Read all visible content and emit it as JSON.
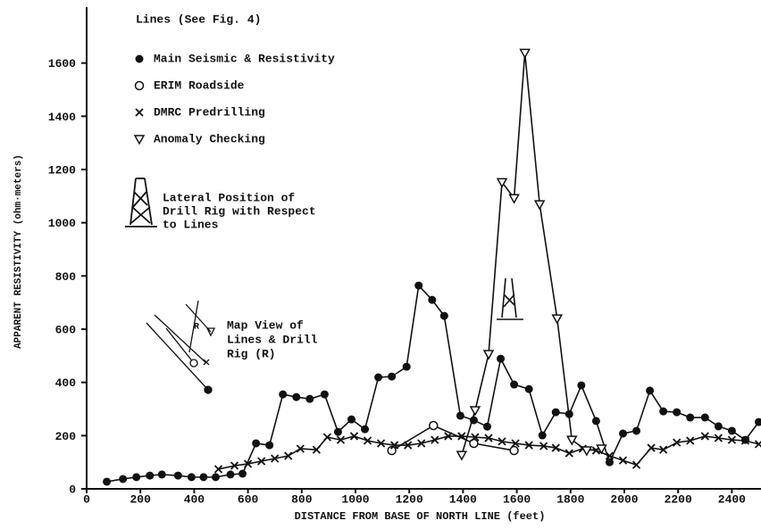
{
  "chart_data": {
    "type": "line",
    "x_label": "DISTANCE FROM BASE OF NORTH LINE (feet)",
    "y_label": "APPARENT RESISTIVITY (ohm·meters)",
    "legend_title": "Lines (See Fig. 4)",
    "rig_note": [
      "Lateral Position of",
      "Drill Rig with Respect",
      "to Lines"
    ],
    "map_note": [
      "Map View of",
      "Lines & Drill",
      "Rig (R)"
    ],
    "map_rig_label": "R",
    "xlim": [
      0,
      2500
    ],
    "ylim": [
      0,
      1800
    ],
    "xticks": [
      0,
      200,
      400,
      600,
      800,
      1000,
      1200,
      1400,
      1600,
      1800,
      2000,
      2200,
      2400
    ],
    "yticks": [
      0,
      200,
      400,
      600,
      800,
      1000,
      1200,
      1400,
      1600
    ],
    "series": [
      {
        "name": "Main Seismic & Resistivity",
        "color": "#111111",
        "marker": "filled-circle",
        "x": [
          75,
          135,
          185,
          235,
          280,
          340,
          390,
          435,
          480,
          535,
          580,
          630,
          680,
          730,
          780,
          830,
          885,
          935,
          985,
          1035,
          1085,
          1135,
          1190,
          1235,
          1285,
          1330,
          1390,
          1440,
          1490,
          1540,
          1590,
          1645,
          1695,
          1745,
          1795,
          1840,
          1895,
          1945,
          1995,
          2045,
          2095,
          2145,
          2195,
          2245,
          2300,
          2350,
          2400,
          2450,
          2500
        ],
        "values": [
          27,
          37,
          44,
          50,
          54,
          50,
          44,
          44,
          44,
          54,
          57,
          171,
          164,
          355,
          345,
          338,
          355,
          214,
          261,
          224,
          419,
          422,
          459,
          764,
          710,
          650,
          275,
          258,
          234,
          489,
          392,
          375,
          201,
          288,
          281,
          389,
          255,
          100,
          208,
          218,
          369,
          291,
          288,
          268,
          268,
          235,
          218,
          184,
          251
        ]
      },
      {
        "name": "ERIM Roadside",
        "color": "#111111",
        "marker": "circle",
        "x": [
          1135,
          1290,
          1440,
          1590
        ],
        "values": [
          144,
          238,
          171,
          144
        ]
      },
      {
        "name": "DMRC Predrilling",
        "color": "#111111",
        "marker": "x",
        "x": [
          490,
          550,
          600,
          650,
          700,
          750,
          795,
          855,
          895,
          945,
          995,
          1045,
          1095,
          1145,
          1195,
          1245,
          1295,
          1345,
          1395,
          1445,
          1495,
          1545,
          1595,
          1645,
          1700,
          1745,
          1795,
          1845,
          1895,
          1945,
          1995,
          2045,
          2100,
          2145,
          2195,
          2245,
          2300,
          2350,
          2400,
          2450,
          2500
        ],
        "values": [
          74,
          87,
          94,
          104,
          114,
          124,
          151,
          147,
          194,
          184,
          198,
          181,
          171,
          164,
          164,
          171,
          184,
          198,
          198,
          194,
          191,
          178,
          171,
          164,
          161,
          154,
          134,
          151,
          144,
          124,
          107,
          90,
          154,
          147,
          174,
          181,
          198,
          191,
          184,
          181,
          168
        ]
      },
      {
        "name": "Anomaly Checking",
        "color": "#111111",
        "marker": "triangle-down",
        "x": [
          1395,
          1445,
          1495,
          1545,
          1590,
          1630,
          1685,
          1750,
          1805,
          1860,
          1915
        ],
        "values": [
          127,
          295,
          506,
          1152,
          1092,
          1638,
          1069,
          640,
          184,
          144,
          151
        ]
      }
    ]
  }
}
